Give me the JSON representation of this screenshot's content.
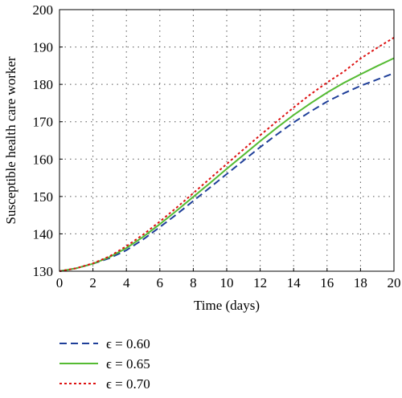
{
  "chart_data": {
    "type": "line",
    "title": "",
    "xlabel": "Time (days)",
    "ylabel": "Susceptible health care worker",
    "xlim": [
      0,
      20
    ],
    "ylim": [
      130,
      200
    ],
    "xticks": [
      0,
      2,
      4,
      6,
      8,
      10,
      12,
      14,
      16,
      18,
      20
    ],
    "yticks": [
      130,
      140,
      150,
      160,
      170,
      180,
      190,
      200
    ],
    "grid": true,
    "legend_position": "below",
    "x": [
      0,
      1,
      2,
      3,
      4,
      5,
      6,
      7,
      8,
      9,
      10,
      11,
      12,
      13,
      14,
      15,
      16,
      17,
      18,
      19,
      20
    ],
    "series": [
      {
        "name": "ϵ = 0.60",
        "color": "#1f3f99",
        "dash": "dashed",
        "values": [
          130.0,
          130.8,
          132.0,
          133.5,
          135.6,
          138.5,
          141.8,
          145.2,
          148.8,
          152.4,
          156.0,
          159.6,
          163.2,
          166.6,
          169.8,
          172.7,
          175.4,
          177.6,
          179.6,
          181.3,
          183.0
        ]
      },
      {
        "name": "ϵ = 0.65",
        "color": "#55bb33",
        "dash": "solid",
        "values": [
          130.0,
          130.8,
          132.0,
          133.8,
          136.2,
          139.2,
          142.6,
          146.2,
          149.9,
          153.6,
          157.4,
          161.1,
          164.8,
          168.4,
          171.8,
          174.9,
          177.8,
          180.4,
          182.7,
          184.9,
          187.0
        ]
      },
      {
        "name": "ϵ = 0.70",
        "color": "#dd1111",
        "dash": "dotted",
        "values": [
          130.0,
          130.8,
          132.1,
          134.0,
          136.7,
          139.8,
          143.3,
          147.0,
          150.9,
          154.8,
          158.7,
          162.6,
          166.4,
          170.1,
          173.8,
          177.3,
          180.5,
          183.4,
          186.9,
          189.8,
          192.5
        ]
      }
    ]
  }
}
